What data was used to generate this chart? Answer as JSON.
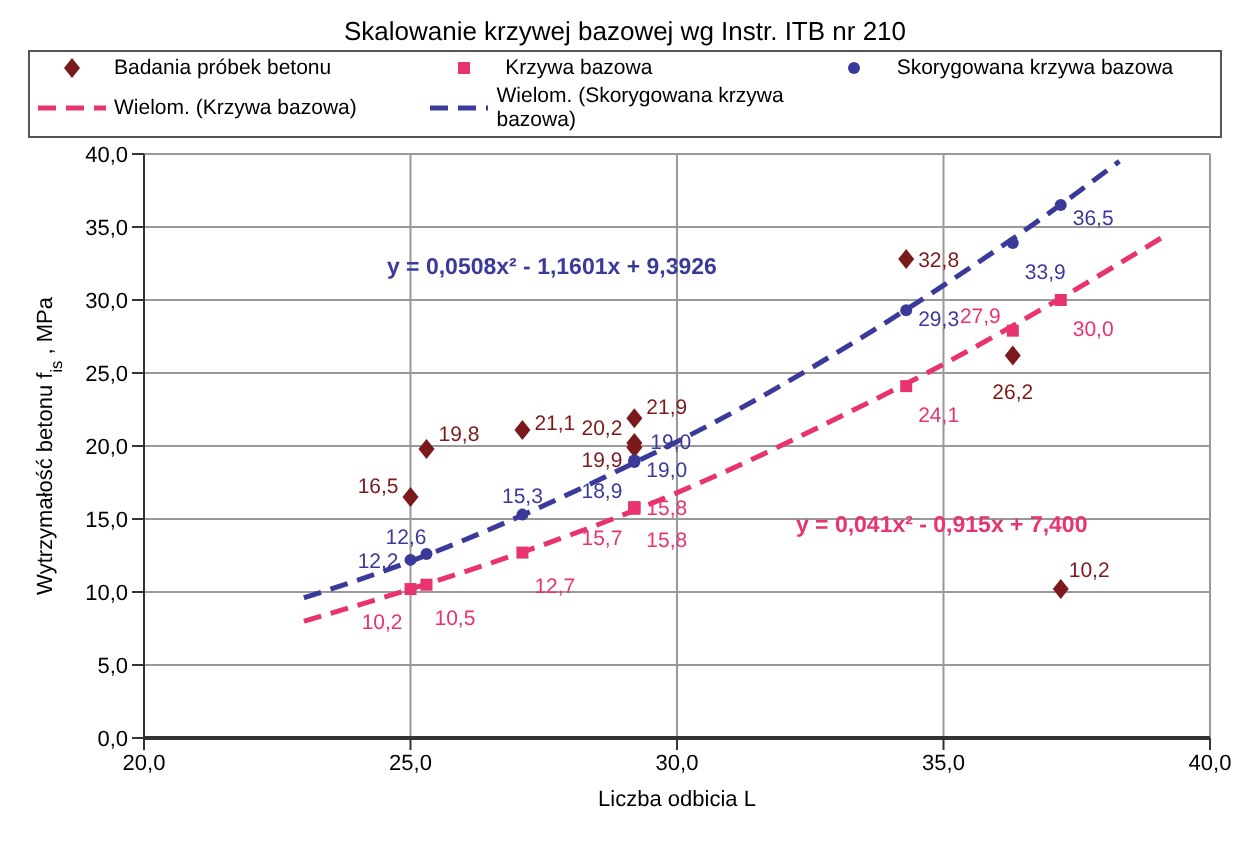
{
  "chart_data": {
    "type": "scatter",
    "title": "Skalowanie krzywej bazowej wg Instr. ITB nr 210",
    "xlabel": "Liczba odbicia L",
    "ylabel": "Wytrzymałość betonu f$_{is}$, MPa",
    "x": [
      25.0,
      25.3,
      27.1,
      29.2,
      29.2,
      29.2,
      34.3,
      36.3,
      37.2
    ],
    "series": [
      {
        "name": "Badania próbek betonu",
        "color": "#7b1a1a",
        "marker": "diamond",
        "values": [
          16.5,
          19.8,
          21.1,
          21.9,
          20.2,
          19.9,
          32.8,
          26.2,
          10.2
        ],
        "value_labels": [
          "16,5",
          "19,8",
          "21,1",
          "21,9",
          "20,2",
          "19,9",
          "32,8",
          "26,2",
          "10,2"
        ]
      },
      {
        "name": "Krzywa bazowa",
        "color": "#e8336e",
        "marker": "square",
        "values": [
          10.2,
          10.5,
          12.7,
          15.7,
          15.8,
          15.8,
          24.1,
          27.9,
          30.0
        ],
        "value_labels": [
          "10,2",
          "10,5",
          "12,7",
          "15,7",
          "15,8",
          "15,8",
          "24,1",
          "27,9",
          "30,0"
        ]
      },
      {
        "name": "Skorygowana krzywa bazowa",
        "color": "#3a3a9a",
        "marker": "circle",
        "values": [
          12.2,
          12.6,
          15.3,
          18.9,
          19.0,
          19.0,
          29.3,
          33.9,
          36.5
        ],
        "value_labels": [
          "12,2",
          "12,6",
          "15,3",
          "18,9",
          "19,0",
          "19,0",
          "29,3",
          "33,9",
          "36,5"
        ]
      },
      {
        "name": "Wielom. (Krzywa bazowa)",
        "type": "line",
        "color": "#e8336e",
        "marker": "none",
        "line_style": "dashed",
        "x": [
          23,
          25,
          27,
          29,
          31,
          33,
          35,
          37,
          39.2
        ],
        "values": [
          8.0,
          10.2,
          12.6,
          15.3,
          18.4,
          21.9,
          25.6,
          29.7,
          34.5
        ]
      },
      {
        "name": "Wielom. (Skorygowana krzywa bazowa)",
        "type": "line",
        "color": "#3a3a9a",
        "marker": "none",
        "line_style": "dashed",
        "x": [
          23,
          25,
          27,
          29,
          31,
          33,
          35,
          37,
          38.3
        ],
        "values": [
          9.6,
          12.1,
          15.1,
          18.5,
          22.2,
          26.4,
          31.0,
          36.0,
          39.5
        ]
      }
    ],
    "xlim": [
      20,
      40
    ],
    "xticks": [
      {
        "value": 20,
        "label": "20,0"
      },
      {
        "value": 25,
        "label": "25,0"
      },
      {
        "value": 30,
        "label": "30,0"
      },
      {
        "value": 35,
        "label": "35,0"
      },
      {
        "value": 40,
        "label": "40,0"
      }
    ],
    "ylim": [
      0,
      40
    ],
    "yticks": [
      {
        "value": 0,
        "label": "0,0"
      },
      {
        "value": 5,
        "label": "5,0"
      },
      {
        "value": 10,
        "label": "10,0"
      },
      {
        "value": 15,
        "label": "15,0"
      },
      {
        "value": 20,
        "label": "20,0"
      },
      {
        "value": 25,
        "label": "25,0"
      },
      {
        "value": 30,
        "label": "30,0"
      },
      {
        "value": 35,
        "label": "35,0"
      },
      {
        "value": 40,
        "label": "40,0"
      }
    ],
    "annotations": [
      "y = 0,0508x² - 1,1601x + 9,3926",
      "y = 0,041x² - 0,915x + 7,400"
    ],
    "grid": true,
    "legend": "top"
  }
}
